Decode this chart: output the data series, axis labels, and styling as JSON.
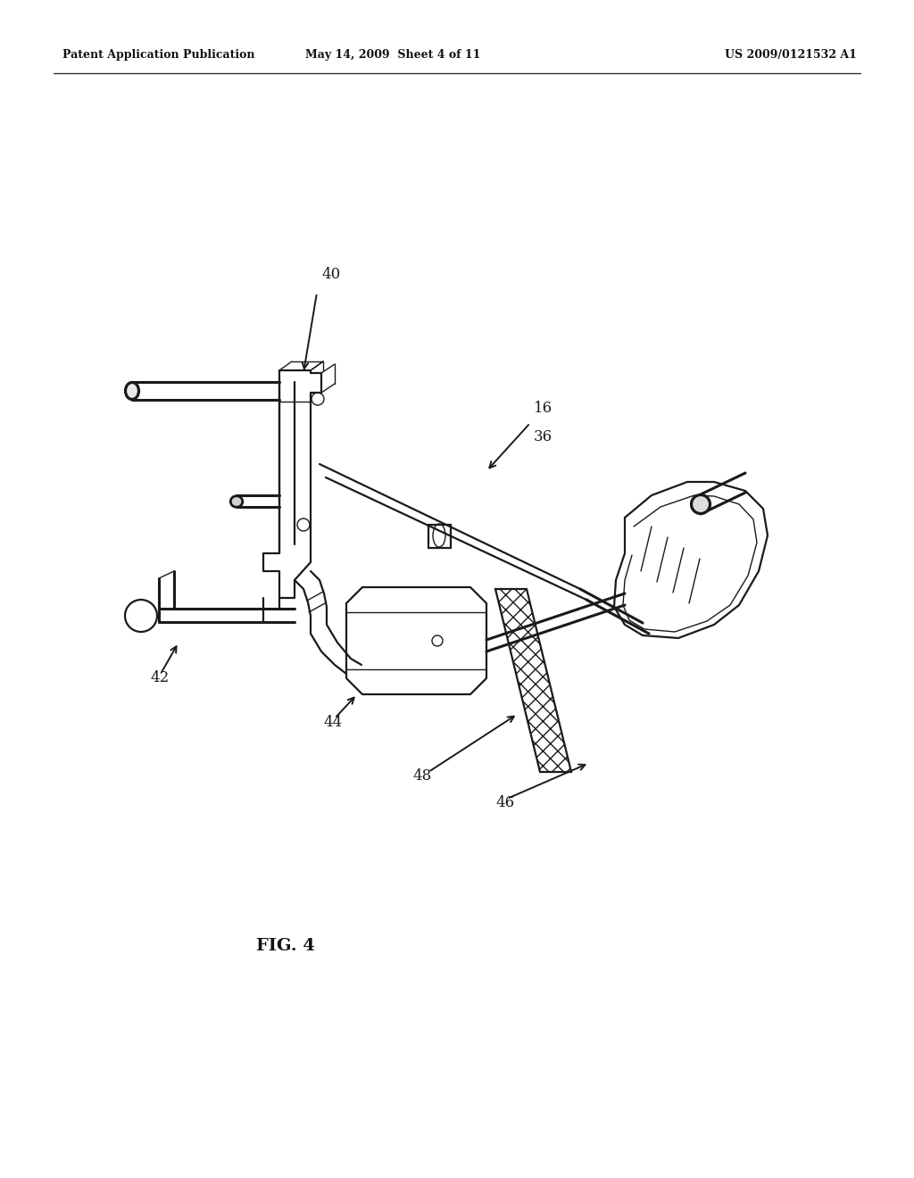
{
  "bg_color": "#ffffff",
  "line_color": "#1a1a1a",
  "header_left": "Patent Application Publication",
  "header_mid": "May 14, 2009  Sheet 4 of 11",
  "header_right": "US 2009/0121532 A1",
  "fig_label": "FIG. 4",
  "lw_main": 1.6,
  "lw_thin": 1.0,
  "lw_thick": 2.2
}
